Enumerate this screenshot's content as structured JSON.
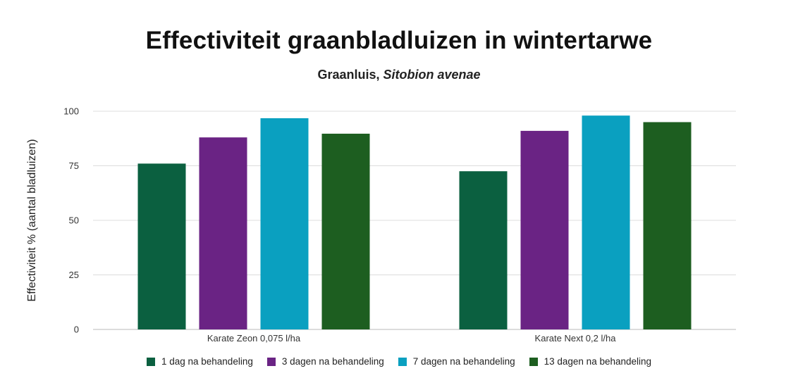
{
  "chart_data": {
    "type": "bar",
    "title": "Effectiviteit graanbladluizen in wintertarwe",
    "subtitle_prefix": "Graanluis, ",
    "subtitle_species": "Sitobion avenae",
    "ylabel": "Effectiviteit % (aantal bladluizen)",
    "xlabel": "",
    "ylim": [
      0,
      100
    ],
    "yticks": [
      0,
      25,
      50,
      75,
      100
    ],
    "grid": true,
    "legend_position": "bottom",
    "categories": [
      "Karate Zeon 0,075 l/ha",
      "Karate Next 0,2 l/ha"
    ],
    "series": [
      {
        "name": "1 dag na behandeling",
        "color": "#0b6040",
        "values": [
          76,
          72.5
        ]
      },
      {
        "name": "3 dagen na behandeling",
        "color": "#6a2384",
        "values": [
          88,
          91
        ]
      },
      {
        "name": "7 dagen na behandeling",
        "color": "#0aa0c0",
        "values": [
          96.8,
          98
        ]
      },
      {
        "name": "13 dagen na behandeling",
        "color": "#1d5e20",
        "values": [
          89.7,
          95
        ]
      }
    ]
  }
}
